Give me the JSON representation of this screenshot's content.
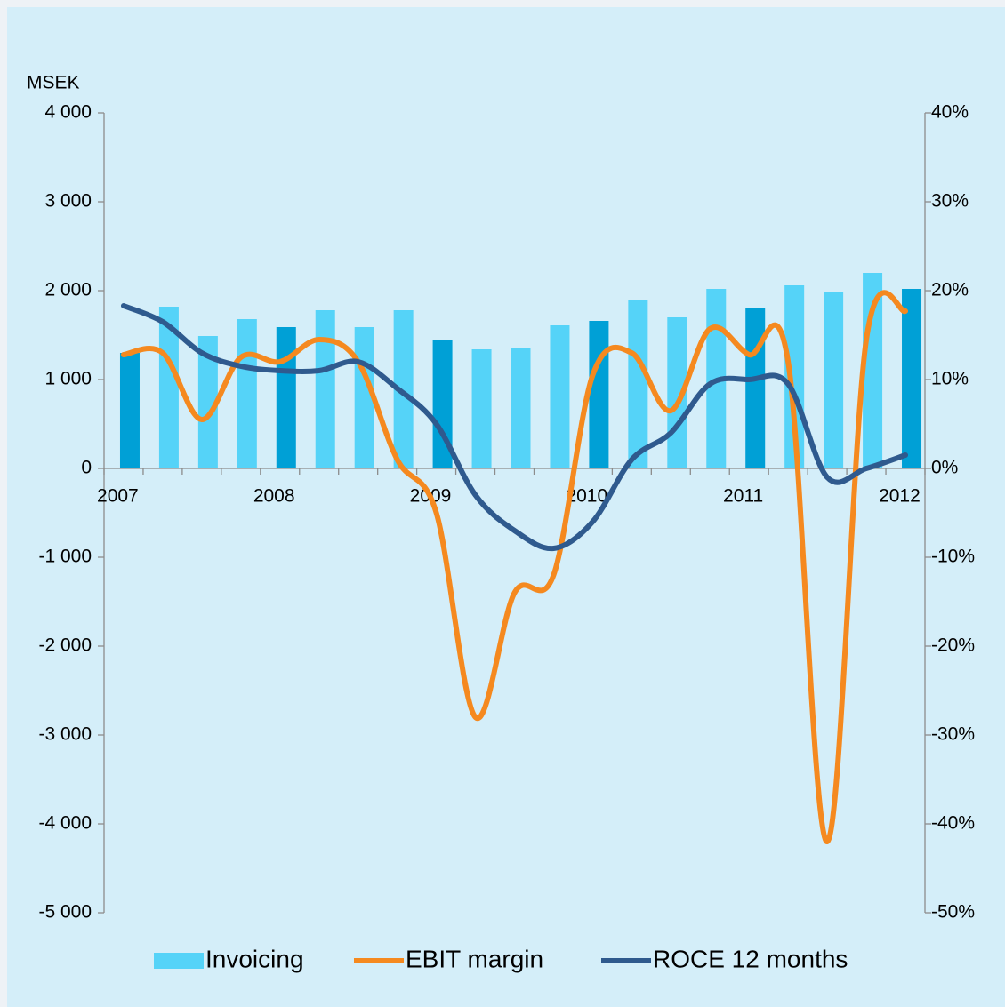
{
  "chart_data": {
    "type": "bar",
    "y_label": "MSEK",
    "categories": [
      "2007",
      null,
      null,
      null,
      "2008",
      null,
      null,
      null,
      "2009",
      null,
      null,
      null,
      "2010",
      null,
      null,
      null,
      "2011",
      null,
      null,
      null,
      "2012"
    ],
    "series": [
      {
        "name": "Invoicing",
        "type": "bar",
        "color": "#55d3f8",
        "colors": [
          "#00a0d6",
          "#55d3f8",
          "#55d3f8",
          "#55d3f8",
          "#00a0d6",
          "#55d3f8",
          "#55d3f8",
          "#55d3f8",
          "#00a0d6",
          "#55d3f8",
          "#55d3f8",
          "#55d3f8",
          "#00a0d6",
          "#55d3f8",
          "#55d3f8",
          "#55d3f8",
          "#00a0d6",
          "#55d3f8",
          "#55d3f8",
          "#55d3f8",
          "#00a0d6"
        ],
        "values": [
          1300,
          1820,
          1490,
          1680,
          1590,
          1780,
          1590,
          1780,
          1440,
          1340,
          1350,
          1610,
          1660,
          1890,
          1700,
          2020,
          1800,
          2060,
          1990,
          2200,
          2020
        ]
      },
      {
        "name": "EBIT margin",
        "type": "line",
        "axis": "y2",
        "color": "#f5891f",
        "values": [
          12.8,
          13,
          5.5,
          12.5,
          12,
          14.5,
          12,
          1,
          -5,
          -28,
          -14,
          -12,
          10.5,
          13,
          6.5,
          15.7,
          12.8,
          12,
          -42,
          14.5,
          17.7
        ]
      },
      {
        "name": "ROCE 12 months",
        "type": "line",
        "axis": "y2",
        "color": "#2f5a8e",
        "values": [
          18.3,
          16.5,
          13,
          11.5,
          11,
          11,
          12,
          9,
          5,
          -3,
          -7,
          -9,
          -6,
          1,
          4,
          9.5,
          10,
          9.5,
          -1,
          0,
          1.5
        ]
      }
    ],
    "ylim": [
      -5000,
      4000
    ],
    "yticks": [
      {
        "value": -5000,
        "label": "-5 000"
      },
      {
        "value": -4000,
        "label": "-4 000"
      },
      {
        "value": -3000,
        "label": "-3 000"
      },
      {
        "value": -2000,
        "label": "-2 000"
      },
      {
        "value": -1000,
        "label": "-1 000"
      },
      0,
      {
        "value": 1000,
        "label": "1 000"
      },
      {
        "value": 2000,
        "label": "2 000"
      },
      {
        "value": 3000,
        "label": "3 000"
      },
      {
        "value": 4000,
        "label": "4 000"
      }
    ],
    "y2lim": [
      -50,
      40
    ],
    "y2ticks": [
      {
        "value": -50,
        "label": "-50%"
      },
      {
        "value": -40,
        "label": "-40%"
      },
      {
        "value": -30,
        "label": "-30%"
      },
      {
        "value": -20,
        "label": "-20%"
      },
      {
        "value": -10,
        "label": "-10%"
      },
      {
        "value": 0,
        "label": "0%"
      },
      {
        "value": 10,
        "label": "10%"
      },
      {
        "value": 20,
        "label": "20%"
      },
      {
        "value": 30,
        "label": "30%"
      },
      {
        "value": 40,
        "label": "40%"
      }
    ],
    "grid": false,
    "legend": "bottom"
  }
}
